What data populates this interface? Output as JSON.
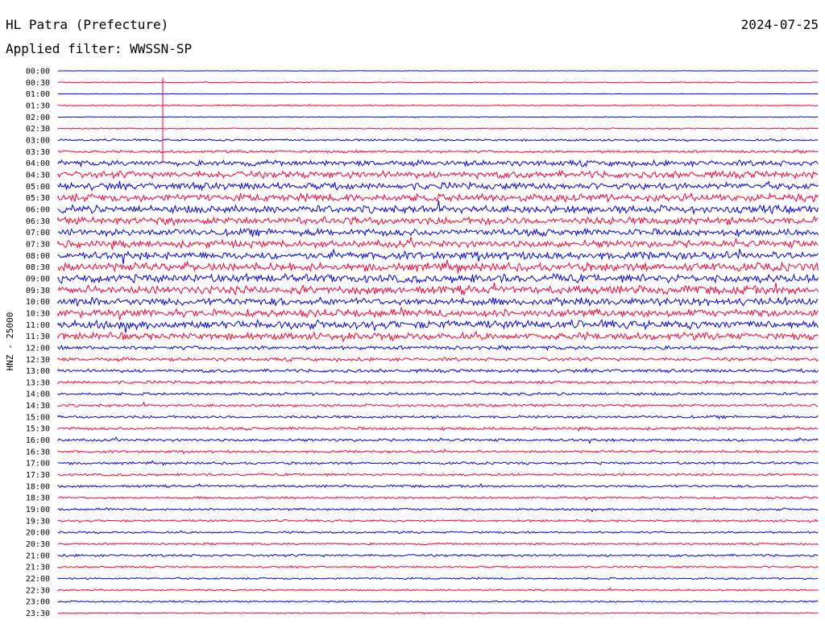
{
  "header": {
    "station": "HL Patra (Prefecture)",
    "date": "2024-07-25",
    "filter_label": "Applied filter: WWSSN-SP"
  },
  "colors": {
    "even_trace": "#0000ee",
    "odd_trace": "#ff0033",
    "text": "#000000",
    "background": "#ffffff"
  },
  "chart_data": {
    "type": "line",
    "ylabel": "HNZ - 25000",
    "trace_interval_minutes": 30,
    "rows": [
      {
        "label": "00:00",
        "amplitude": 0.3
      },
      {
        "label": "00:30",
        "amplitude": 0.7
      },
      {
        "label": "01:00",
        "amplitude": 0.3
      },
      {
        "label": "01:30",
        "amplitude": 0.8
      },
      {
        "label": "02:00",
        "amplitude": 0.6
      },
      {
        "label": "02:30",
        "amplitude": 0.9
      },
      {
        "label": "03:00",
        "amplitude": 1.5
      },
      {
        "label": "03:30",
        "amplitude": 1.8
      },
      {
        "label": "04:00",
        "amplitude": 4.0
      },
      {
        "label": "04:30",
        "amplitude": 5.0
      },
      {
        "label": "05:00",
        "amplitude": 5.0
      },
      {
        "label": "05:30",
        "amplitude": 5.5
      },
      {
        "label": "06:00",
        "amplitude": 5.5
      },
      {
        "label": "06:30",
        "amplitude": 5.5
      },
      {
        "label": "07:00",
        "amplitude": 5.0
      },
      {
        "label": "07:30",
        "amplitude": 5.0
      },
      {
        "label": "08:00",
        "amplitude": 5.5
      },
      {
        "label": "08:30",
        "amplitude": 6.0
      },
      {
        "label": "09:00",
        "amplitude": 6.0
      },
      {
        "label": "09:30",
        "amplitude": 6.0
      },
      {
        "label": "10:00",
        "amplitude": 5.5
      },
      {
        "label": "10:30",
        "amplitude": 5.5
      },
      {
        "label": "11:00",
        "amplitude": 6.0
      },
      {
        "label": "11:30",
        "amplitude": 5.0
      },
      {
        "label": "12:00",
        "amplitude": 2.8
      },
      {
        "label": "12:30",
        "amplitude": 2.5
      },
      {
        "label": "13:00",
        "amplitude": 2.4
      },
      {
        "label": "13:30",
        "amplitude": 2.2
      },
      {
        "label": "14:00",
        "amplitude": 2.0
      },
      {
        "label": "14:30",
        "amplitude": 2.0
      },
      {
        "label": "15:00",
        "amplitude": 2.0
      },
      {
        "label": "15:30",
        "amplitude": 2.0
      },
      {
        "label": "16:00",
        "amplitude": 2.0
      },
      {
        "label": "16:30",
        "amplitude": 1.8
      },
      {
        "label": "17:00",
        "amplitude": 1.8
      },
      {
        "label": "17:30",
        "amplitude": 1.8
      },
      {
        "label": "18:00",
        "amplitude": 1.8
      },
      {
        "label": "18:30",
        "amplitude": 1.6
      },
      {
        "label": "19:00",
        "amplitude": 1.6
      },
      {
        "label": "19:30",
        "amplitude": 1.6
      },
      {
        "label": "20:00",
        "amplitude": 1.5
      },
      {
        "label": "20:30",
        "amplitude": 1.4
      },
      {
        "label": "21:00",
        "amplitude": 1.8
      },
      {
        "label": "21:30",
        "amplitude": 1.3
      },
      {
        "label": "22:00",
        "amplitude": 1.4
      },
      {
        "label": "22:30",
        "amplitude": 1.2
      },
      {
        "label": "23:00",
        "amplitude": 1.2
      },
      {
        "label": "23:30",
        "amplitude": 1.0
      }
    ]
  }
}
